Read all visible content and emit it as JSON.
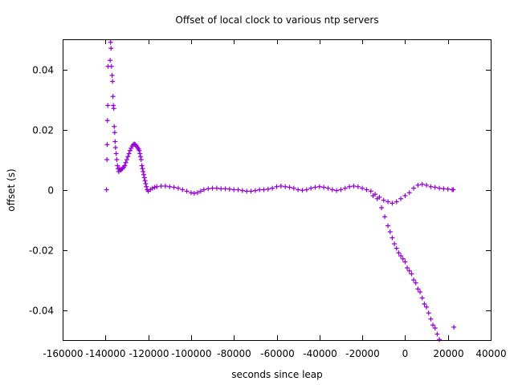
{
  "chart_data": {
    "type": "scatter",
    "title": "Offset of local clock to various ntp servers",
    "xlabel": "seconds since leap",
    "ylabel": "offset (s)",
    "xlim": [
      -160000,
      40000
    ],
    "ylim": [
      -0.05,
      0.05
    ],
    "marker": "+",
    "color": "#9400d3",
    "grid": false,
    "x_ticks": [
      {
        "v": -160000,
        "label": "-160000"
      },
      {
        "v": -140000,
        "label": "-140000"
      },
      {
        "v": -120000,
        "label": "-120000"
      },
      {
        "v": -100000,
        "label": "-100000"
      },
      {
        "v": -80000,
        "label": "-80000"
      },
      {
        "v": -60000,
        "label": "-60000"
      },
      {
        "v": -40000,
        "label": "-40000"
      },
      {
        "v": -20000,
        "label": "-20000"
      },
      {
        "v": 0,
        "label": "0"
      },
      {
        "v": 20000,
        "label": "20000"
      },
      {
        "v": 40000,
        "label": "40000"
      }
    ],
    "y_ticks": [
      {
        "v": 0.04,
        "label": "0.04"
      },
      {
        "v": 0.02,
        "label": "0.02"
      },
      {
        "v": 0,
        "label": "0"
      },
      {
        "v": -0.02,
        "label": "-0.02"
      },
      {
        "v": -0.04,
        "label": "-0.04"
      }
    ],
    "series": [
      {
        "values": [
          [
            -139500,
            0.0
          ],
          [
            -139300,
            0.01
          ],
          [
            -139200,
            0.015
          ],
          [
            -139100,
            0.023
          ],
          [
            -138900,
            0.028
          ],
          [
            -138800,
            0.041
          ],
          [
            -137800,
            0.043
          ],
          [
            -137600,
            0.049
          ],
          [
            -137400,
            0.047
          ],
          [
            -137200,
            0.041
          ],
          [
            -136900,
            0.038
          ],
          [
            -136700,
            0.036
          ],
          [
            -136500,
            0.031
          ],
          [
            -136300,
            0.028
          ],
          [
            -136100,
            0.027
          ],
          [
            -135900,
            0.021
          ],
          [
            -135700,
            0.019
          ],
          [
            -135500,
            0.016
          ],
          [
            -135300,
            0.014
          ],
          [
            -135000,
            0.012
          ],
          [
            -134700,
            0.01
          ],
          [
            -134400,
            0.008
          ],
          [
            -134100,
            0.007
          ],
          [
            -133800,
            0.006
          ],
          [
            -133400,
            0.007
          ],
          [
            -133000,
            0.0065
          ],
          [
            -132500,
            0.0068
          ],
          [
            -132000,
            0.007
          ],
          [
            -131500,
            0.0075
          ],
          [
            -131000,
            0.008
          ],
          [
            -130500,
            0.009
          ],
          [
            -130000,
            0.01
          ],
          [
            -129500,
            0.011
          ],
          [
            -129000,
            0.012
          ],
          [
            -128500,
            0.013
          ],
          [
            -128000,
            0.0138
          ],
          [
            -127500,
            0.0145
          ],
          [
            -127000,
            0.015
          ],
          [
            -126500,
            0.0152
          ],
          [
            -126000,
            0.015
          ],
          [
            -125500,
            0.0145
          ],
          [
            -125000,
            0.014
          ],
          [
            -124500,
            0.0135
          ],
          [
            -124200,
            0.013
          ],
          [
            -123900,
            0.012
          ],
          [
            -123600,
            0.011
          ],
          [
            -123300,
            0.01
          ],
          [
            -123000,
            0.008
          ],
          [
            -122700,
            0.007
          ],
          [
            -122400,
            0.006
          ],
          [
            -122100,
            0.005
          ],
          [
            -121800,
            0.004
          ],
          [
            -121500,
            0.003
          ],
          [
            -121200,
            0.002
          ],
          [
            -120900,
            0.001
          ],
          [
            -120500,
            0.0
          ],
          [
            -120000,
            -0.0005
          ],
          [
            -119000,
            0.0
          ],
          [
            -118000,
            0.0005
          ],
          [
            -117000,
            0.0008
          ],
          [
            -116000,
            0.001
          ],
          [
            -114000,
            0.0012
          ],
          [
            -112000,
            0.0012
          ],
          [
            -110000,
            0.001
          ],
          [
            -108000,
            0.0008
          ],
          [
            -106000,
            0.0005
          ],
          [
            -104000,
            0.0
          ],
          [
            -102000,
            -0.0005
          ],
          [
            -100000,
            -0.001
          ],
          [
            -98500,
            -0.0012
          ],
          [
            -97000,
            -0.001
          ],
          [
            -95500,
            -0.0005
          ],
          [
            -94000,
            0.0
          ],
          [
            -92000,
            0.0003
          ],
          [
            -90000,
            0.0005
          ],
          [
            -88000,
            0.0005
          ],
          [
            -86000,
            0.0003
          ],
          [
            -84000,
            0.0003
          ],
          [
            -82000,
            0.0002
          ],
          [
            -80000,
            0.0
          ],
          [
            -78000,
            0.0
          ],
          [
            -76000,
            -0.0003
          ],
          [
            -74000,
            -0.0005
          ],
          [
            -72000,
            -0.0005
          ],
          [
            -70000,
            -0.0003
          ],
          [
            -68000,
            0.0
          ],
          [
            -66000,
            0.0
          ],
          [
            -64000,
            0.0002
          ],
          [
            -62000,
            0.0005
          ],
          [
            -60000,
            0.001
          ],
          [
            -58000,
            0.0012
          ],
          [
            -56000,
            0.001
          ],
          [
            -54000,
            0.0008
          ],
          [
            -52000,
            0.0005
          ],
          [
            -50000,
            0.0
          ],
          [
            -48000,
            -0.0002
          ],
          [
            -46000,
            0.0
          ],
          [
            -44000,
            0.0005
          ],
          [
            -42000,
            0.0008
          ],
          [
            -40000,
            0.001
          ],
          [
            -38000,
            0.0008
          ],
          [
            -36000,
            0.0005
          ],
          [
            -34000,
            0.0
          ],
          [
            -32000,
            -0.0003
          ],
          [
            -30000,
            0.0
          ],
          [
            -28000,
            0.0005
          ],
          [
            -26000,
            0.001
          ],
          [
            -24000,
            0.0012
          ],
          [
            -22000,
            0.001
          ],
          [
            -20000,
            0.0005
          ],
          [
            -18000,
            0.0
          ],
          [
            -16000,
            -0.0005
          ],
          [
            -14000,
            -0.0015
          ],
          [
            -12000,
            -0.0025
          ],
          [
            -10000,
            -0.0035
          ],
          [
            -8000,
            -0.004
          ],
          [
            -6000,
            -0.0045
          ],
          [
            -4000,
            -0.004
          ],
          [
            -2000,
            -0.003
          ],
          [
            0,
            -0.002
          ],
          [
            2000,
            -0.001
          ],
          [
            4000,
            0.0005
          ],
          [
            6000,
            0.0015
          ],
          [
            8000,
            0.0018
          ],
          [
            10000,
            0.0015
          ],
          [
            12000,
            0.001
          ],
          [
            14000,
            0.0008
          ],
          [
            16000,
            0.0005
          ],
          [
            18000,
            0.0003
          ],
          [
            20000,
            0.0002
          ],
          [
            22000,
            0.0
          ],
          [
            22500,
            0.0
          ],
          [
            -15000,
            -0.002
          ],
          [
            -13000,
            -0.003
          ],
          [
            -11000,
            -0.006
          ],
          [
            -9500,
            -0.009
          ],
          [
            -8000,
            -0.012
          ],
          [
            -7000,
            -0.014
          ],
          [
            -6000,
            -0.016
          ],
          [
            -5000,
            -0.018
          ],
          [
            -4000,
            -0.0195
          ],
          [
            -3000,
            -0.021
          ],
          [
            -2000,
            -0.022
          ],
          [
            -1000,
            -0.023
          ],
          [
            0,
            -0.024
          ],
          [
            1000,
            -0.026
          ],
          [
            2000,
            -0.027
          ],
          [
            3000,
            -0.028
          ],
          [
            4000,
            -0.03
          ],
          [
            5000,
            -0.031
          ],
          [
            6000,
            -0.033
          ],
          [
            7000,
            -0.034
          ],
          [
            8000,
            -0.036
          ],
          [
            9000,
            -0.038
          ],
          [
            10000,
            -0.039
          ],
          [
            11000,
            -0.041
          ],
          [
            12000,
            -0.043
          ],
          [
            13000,
            -0.045
          ],
          [
            14000,
            -0.046
          ],
          [
            15000,
            -0.048
          ],
          [
            16000,
            -0.0498
          ],
          [
            22800,
            -0.0457
          ]
        ]
      }
    ]
  }
}
